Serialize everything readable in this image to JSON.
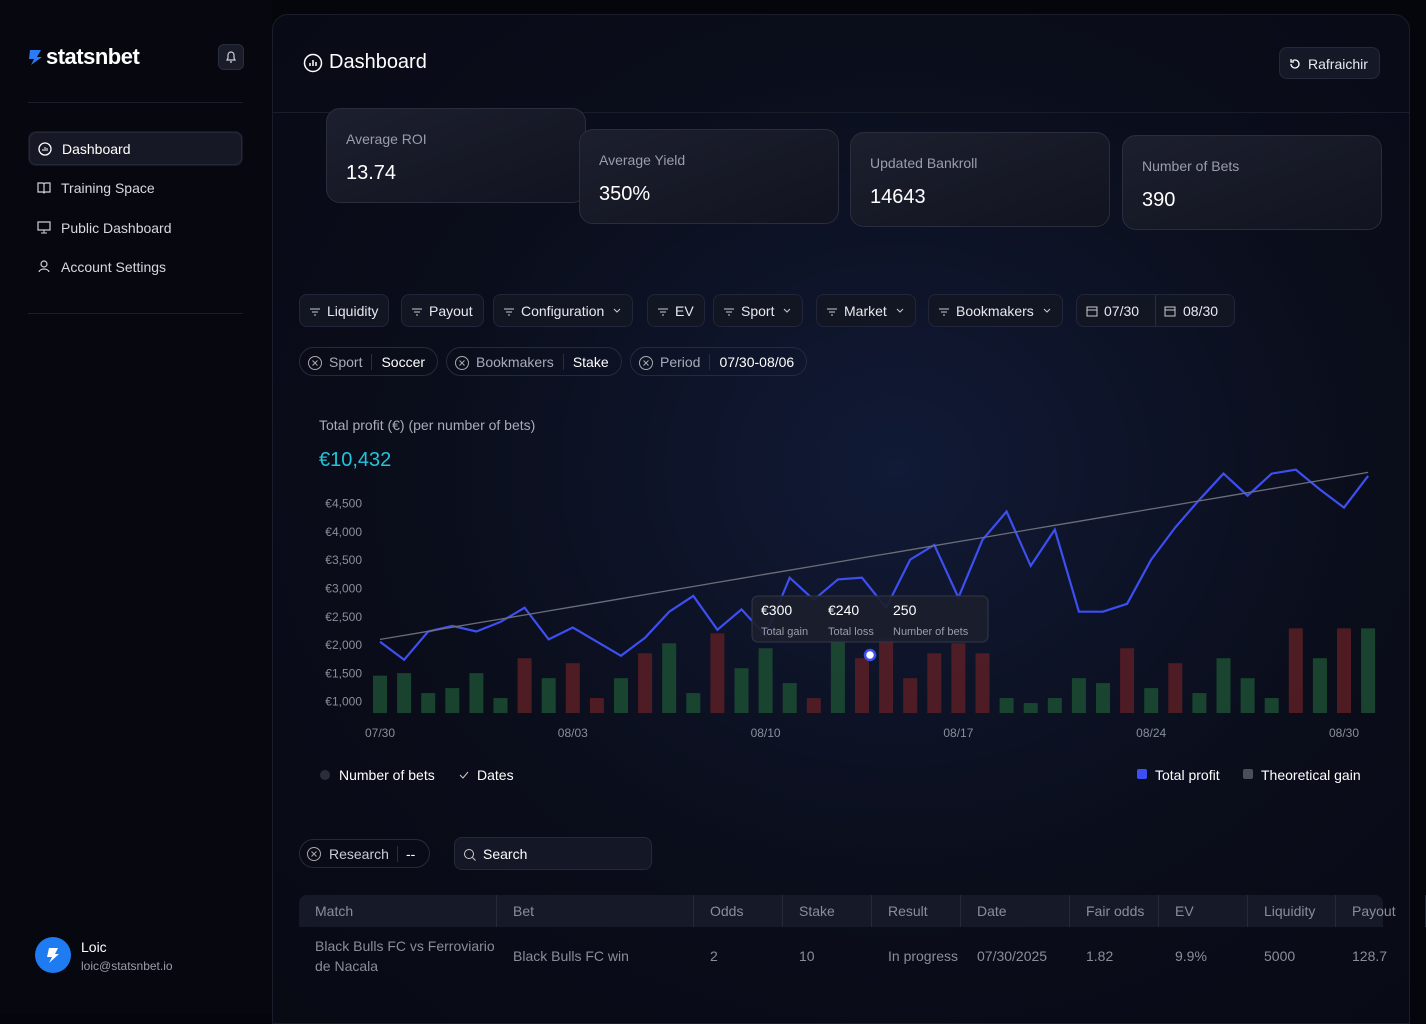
{
  "sidebar": {
    "brand": "statsnbet",
    "nav": [
      "Dashboard",
      "Training Space",
      "Public Dashboard",
      "Account Settings"
    ],
    "user": {
      "name": "Loic",
      "email": "loic@statsnbet.io"
    }
  },
  "header": {
    "title": "Dashboard",
    "refresh": "Rafraichir"
  },
  "kpis": [
    {
      "label": "Average ROI",
      "value": "13.74"
    },
    {
      "label": "Average Yield",
      "value": "350%"
    },
    {
      "label": "Updated Bankroll",
      "value": "14643"
    },
    {
      "label": "Number of Bets",
      "value": "390"
    }
  ],
  "filters": [
    "Liquidity",
    "Payout",
    "Configuration",
    "EV",
    "Sport",
    "Market",
    "Bookmakers"
  ],
  "date_range": [
    "07/30",
    "08/30"
  ],
  "active_filters": [
    {
      "label": "Sport",
      "value": "Soccer"
    },
    {
      "label": "Bookmakers",
      "value": "Stake"
    },
    {
      "label": "Period",
      "value": "07/30-08/06"
    }
  ],
  "chart_data": {
    "type": "line",
    "title": "Total profit (€) (per number of bets)",
    "subtitle": "€10,432",
    "categories": [
      "07/30",
      null,
      null,
      null,
      null,
      null,
      null,
      null,
      "08/03",
      null,
      null,
      null,
      null,
      null,
      null,
      null,
      "08/10",
      null,
      null,
      null,
      null,
      null,
      null,
      null,
      "08/17",
      null,
      null,
      null,
      null,
      null,
      null,
      null,
      "08/24",
      null,
      null,
      null,
      null,
      null,
      null,
      null,
      "08/30",
      null
    ],
    "series": [
      {
        "name": "Total profit",
        "color": "#3d4ff2",
        "values": [
          2060,
          1740,
          2240,
          2340,
          2240,
          2410,
          2660,
          2100,
          2310,
          2060,
          1810,
          2130,
          2590,
          2870,
          2270,
          2630,
          2170,
          3190,
          2800,
          3160,
          3190,
          2660,
          3510,
          3770,
          2840,
          3860,
          4360,
          3400,
          4040,
          2590,
          2590,
          2730,
          3510,
          4080,
          4570,
          5030,
          4640,
          5030,
          5100,
          4750,
          4430,
          4990
        ]
      },
      {
        "name": "Theoretical gain",
        "color": "#6b6e7a",
        "values": [
          2100,
          2172,
          2244,
          2316,
          2388,
          2460,
          2532,
          2604,
          2676,
          2748,
          2820,
          2892,
          2964,
          3036,
          3108,
          3180,
          3252,
          3324,
          3396,
          3468,
          3540,
          3612,
          3684,
          3756,
          3828,
          3900,
          3972,
          4044,
          4116,
          4188,
          4260,
          4332,
          4404,
          4476,
          4548,
          4620,
          4692,
          4764,
          4836,
          4908,
          4980,
          5052
        ]
      },
      {
        "name": "Number of bets",
        "type": "bar",
        "axis": "y2",
        "values": [
          15,
          16,
          8,
          10,
          16,
          6,
          22,
          14,
          20,
          6,
          14,
          24,
          28,
          8,
          32,
          18,
          26,
          12,
          6,
          30,
          22,
          30,
          14,
          24,
          28,
          24,
          6,
          4,
          6,
          14,
          12,
          26,
          10,
          20,
          8,
          22,
          14,
          6,
          34,
          22,
          34,
          34
        ],
        "colors": [
          "#1c4d33",
          "#1c4d33",
          "#1c4d33",
          "#1c4d33",
          "#1c4d33",
          "#1c4d33",
          "#5a1f25",
          "#1c4d33",
          "#5a1f25",
          "#5a1f25",
          "#1c4d33",
          "#5a1f25",
          "#1c4d33",
          "#1c4d33",
          "#5a1f25",
          "#1c4d33",
          "#1c4d33",
          "#1c4d33",
          "#5a1f25",
          "#1c4d33",
          "#5a1f25",
          "#5a1f25",
          "#5a1f25",
          "#5a1f25",
          "#5a1f25",
          "#5a1f25",
          "#1c4d33",
          "#1c4d33",
          "#1c4d33",
          "#1c4d33",
          "#1c4d33",
          "#5a1f25",
          "#1c4d33",
          "#5a1f25",
          "#1c4d33",
          "#1c4d33",
          "#1c4d33",
          "#1c4d33",
          "#5a1f25",
          "#1c4d33",
          "#5a1f25",
          "#1c4d33"
        ]
      }
    ],
    "ylim": [
      800,
      5200
    ],
    "yticks": [
      {
        "value": 1000,
        "label": "€1,000"
      },
      {
        "value": 1500,
        "label": "€1,500"
      },
      {
        "value": 2000,
        "label": "€2,000"
      },
      {
        "value": 2500,
        "label": "€2,500"
      },
      {
        "value": 3000,
        "label": "€3,000"
      },
      {
        "value": 3500,
        "label": "€3,500"
      },
      {
        "value": 4000,
        "label": "€4,000"
      },
      {
        "value": 4500,
        "label": "€4,500"
      }
    ],
    "y2lim": [
      0,
      100
    ],
    "dates_toggle": "Dates",
    "tooltip": [
      {
        "value": "€300",
        "label": "Total gain"
      },
      {
        "value": "€240",
        "label": "Total loss"
      },
      {
        "value": "250",
        "label": "Number of bets"
      }
    ]
  },
  "search": {
    "research": "Research",
    "research_value": "--",
    "placeholder": "Search"
  },
  "table": {
    "headers": [
      "Match",
      "Bet",
      "Odds",
      "Stake",
      "Result",
      "Date",
      "Fair odds",
      "EV",
      "Liquidity",
      "Payout"
    ],
    "rows": [
      [
        "Black Bulls FC vs Ferroviario de Nacala",
        "Black Bulls FC win",
        "2",
        "10",
        "In progress",
        "07/30/2025",
        "1.82",
        "9.9%",
        "5000",
        "128.7"
      ]
    ]
  }
}
